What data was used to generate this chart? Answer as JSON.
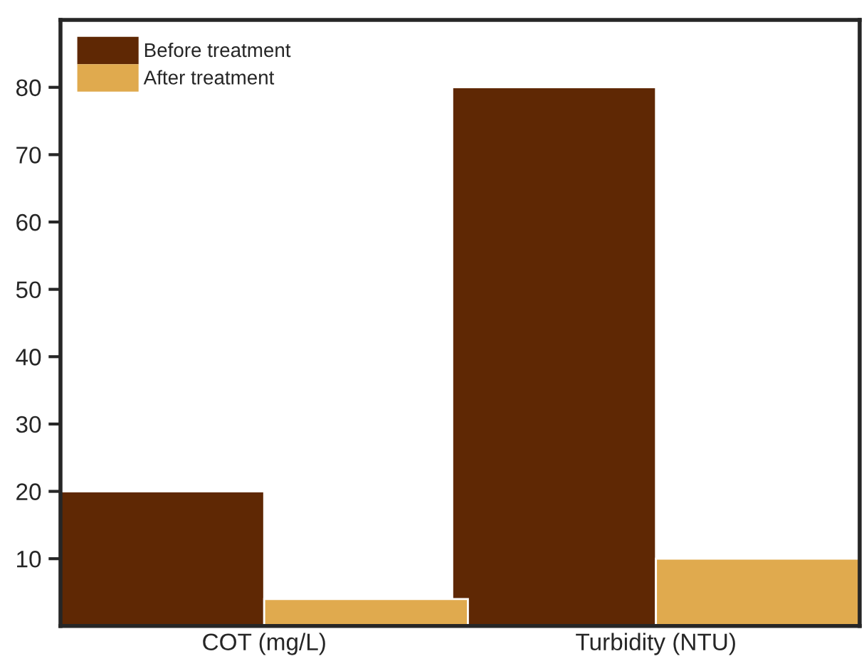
{
  "chart_data": {
    "type": "bar",
    "categories": [
      "COT (mg/L)",
      "Turbidity (NTU)"
    ],
    "series": [
      {
        "name": "Before treatment",
        "color": "#5f2804",
        "values": [
          20,
          80
        ]
      },
      {
        "name": "After treatment",
        "color": "#e0aa4e",
        "values": [
          4,
          10
        ]
      }
    ],
    "ylim": [
      0,
      90
    ],
    "yticks": [
      10,
      20,
      30,
      40,
      50,
      60,
      70,
      80
    ],
    "grid": false,
    "legend": "top left"
  }
}
